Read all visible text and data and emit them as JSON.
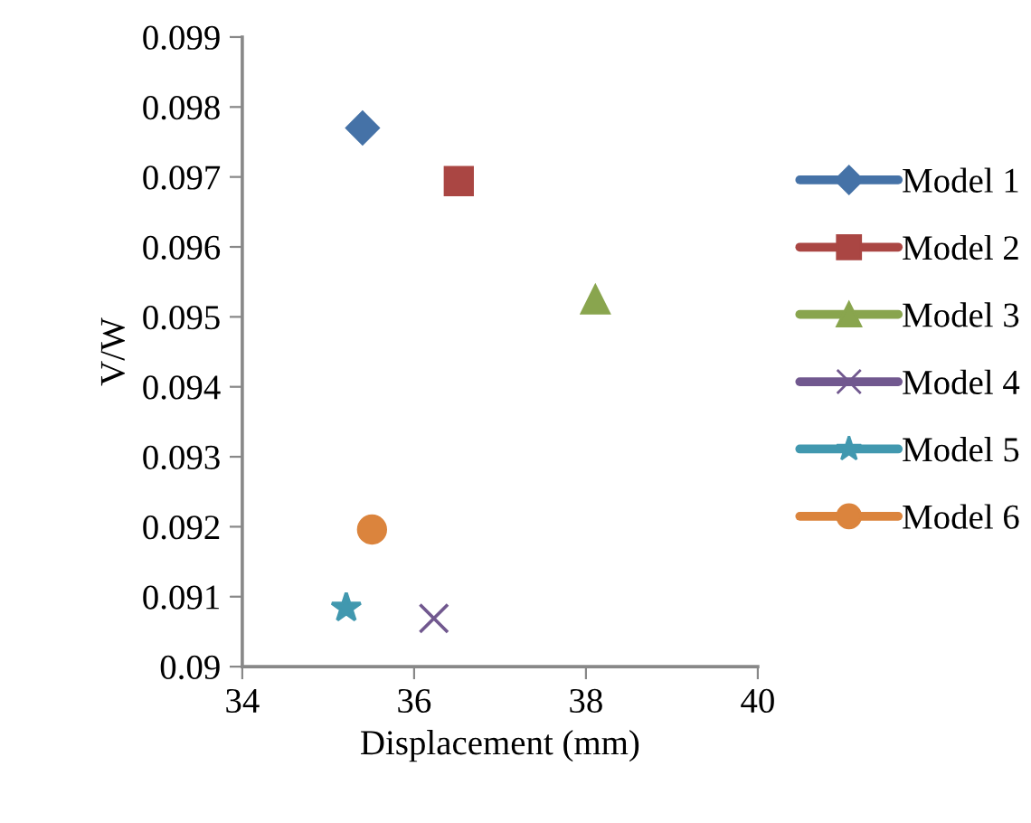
{
  "chart_data": {
    "type": "scatter",
    "xlabel": "Displacement (mm)",
    "ylabel": "V/W",
    "xlim": [
      34,
      40
    ],
    "xticks": [
      34,
      36,
      38,
      40
    ],
    "ylim": [
      0.09,
      0.099
    ],
    "yticks": [
      {
        "value": 0.09,
        "label": "0.09"
      },
      0.091,
      0.092,
      0.093,
      0.094,
      0.095,
      0.096,
      0.097,
      0.098,
      0.099
    ],
    "grid": false,
    "legend": "right",
    "series": [
      {
        "name": "Model 1",
        "color": "#4572a7",
        "marker": "diamond",
        "x": [
          35.4
        ],
        "values": [
          0.0977
        ]
      },
      {
        "name": "Model 2",
        "color": "#aa4643",
        "marker": "square",
        "x": [
          36.52
        ],
        "values": [
          0.09694
        ]
      },
      {
        "name": "Model 3",
        "color": "#89a54e",
        "marker": "triangle",
        "x": [
          38.11
        ],
        "values": [
          0.09525
        ]
      },
      {
        "name": "Model 4",
        "color": "#71588f",
        "marker": "cross",
        "x": [
          36.23
        ],
        "values": [
          0.09069
        ]
      },
      {
        "name": "Model 5",
        "color": "#4198af",
        "marker": "star",
        "x": [
          35.21
        ],
        "values": [
          0.09084
        ]
      },
      {
        "name": "Model 6",
        "color": "#db843d",
        "marker": "circle",
        "x": [
          35.51
        ],
        "values": [
          0.09196
        ]
      }
    ]
  }
}
